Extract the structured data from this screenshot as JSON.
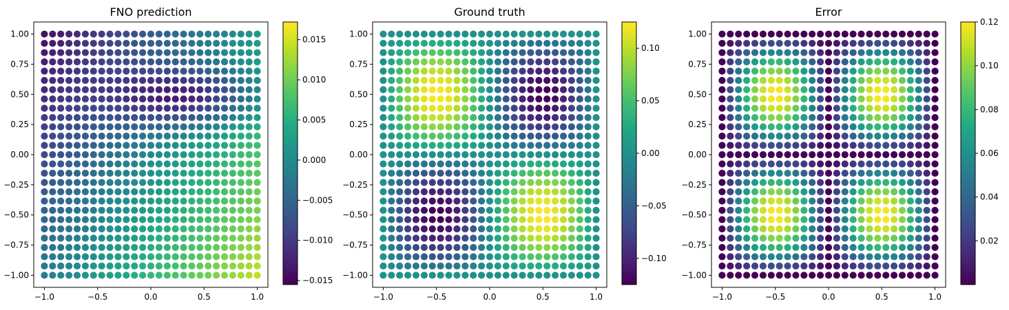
{
  "chart_data": [
    {
      "type": "scatter",
      "title": "FNO prediction",
      "field": "fno",
      "xlim": [
        -1.1,
        1.1
      ],
      "ylim": [
        -1.1,
        1.1
      ],
      "x_ticks": [
        -1.0,
        -0.5,
        0.0,
        0.5,
        1.0
      ],
      "x_tick_labels": [
        "−1.0",
        "−0.5",
        "0.0",
        "0.5",
        "1.0"
      ],
      "y_ticks": [
        1.0,
        0.75,
        0.5,
        0.25,
        0.0,
        -0.25,
        -0.5,
        -0.75,
        -1.0
      ],
      "y_tick_labels": [
        "1.00",
        "0.75",
        "0.50",
        "0.25",
        "0.00",
        "−0.25",
        "−0.50",
        "−0.75",
        "−1.00"
      ],
      "grid_points": 27,
      "grid_range": [
        -1.0,
        1.0
      ],
      "colorbar": {
        "range": [
          -0.0155,
          0.0172
        ],
        "ticks": [
          0.015,
          0.01,
          0.005,
          0.0,
          -0.005,
          -0.01,
          -0.015
        ],
        "tick_labels": [
          "0.015",
          "0.010",
          "0.005",
          "0.000",
          "−0.005",
          "−0.010",
          "−0.015"
        ]
      },
      "colormap": "viridis",
      "grid": false
    },
    {
      "type": "scatter",
      "title": "Ground truth",
      "field": "truth",
      "xlim": [
        -1.1,
        1.1
      ],
      "ylim": [
        -1.1,
        1.1
      ],
      "x_ticks": [
        -1.0,
        -0.5,
        0.0,
        0.5,
        1.0
      ],
      "x_tick_labels": [
        "−1.0",
        "−0.5",
        "0.0",
        "0.5",
        "1.0"
      ],
      "y_ticks": [
        1.0,
        0.75,
        0.5,
        0.25,
        0.0,
        -0.25,
        -0.5,
        -0.75,
        -1.0
      ],
      "y_tick_labels": [
        "1.00",
        "0.75",
        "0.50",
        "0.25",
        "0.00",
        "−0.25",
        "−0.50",
        "−0.75",
        "−1.00"
      ],
      "grid_points": 27,
      "grid_range": [
        -1.0,
        1.0
      ],
      "colorbar": {
        "range": [
          -0.125,
          0.125
        ],
        "ticks": [
          0.1,
          0.05,
          0.0,
          -0.05,
          -0.1
        ],
        "tick_labels": [
          "0.10",
          "0.05",
          "0.00",
          "−0.05",
          "−0.10"
        ]
      },
      "colormap": "viridis",
      "grid": false
    },
    {
      "type": "scatter",
      "title": "Error",
      "field": "error",
      "xlim": [
        -1.1,
        1.1
      ],
      "ylim": [
        -1.1,
        1.1
      ],
      "x_ticks": [
        -1.0,
        -0.5,
        0.0,
        0.5,
        1.0
      ],
      "x_tick_labels": [
        "−1.0",
        "−0.5",
        "0.0",
        "0.5",
        "1.0"
      ],
      "y_ticks": [
        1.0,
        0.75,
        0.5,
        0.25,
        0.0,
        -0.25,
        -0.5,
        -0.75,
        -1.0
      ],
      "y_tick_labels": [
        "1.00",
        "0.75",
        "0.50",
        "0.25",
        "0.00",
        "−0.25",
        "−0.50",
        "−0.75",
        "−1.00"
      ],
      "grid_points": 27,
      "grid_range": [
        -1.0,
        1.0
      ],
      "colorbar": {
        "range": [
          0.0,
          0.12
        ],
        "ticks": [
          0.12,
          0.1,
          0.08,
          0.06,
          0.04,
          0.02
        ],
        "tick_labels": [
          "0.12",
          "0.10",
          "0.08",
          "0.06",
          "0.04",
          "0.02"
        ]
      },
      "colormap": "viridis",
      "grid": false
    }
  ]
}
